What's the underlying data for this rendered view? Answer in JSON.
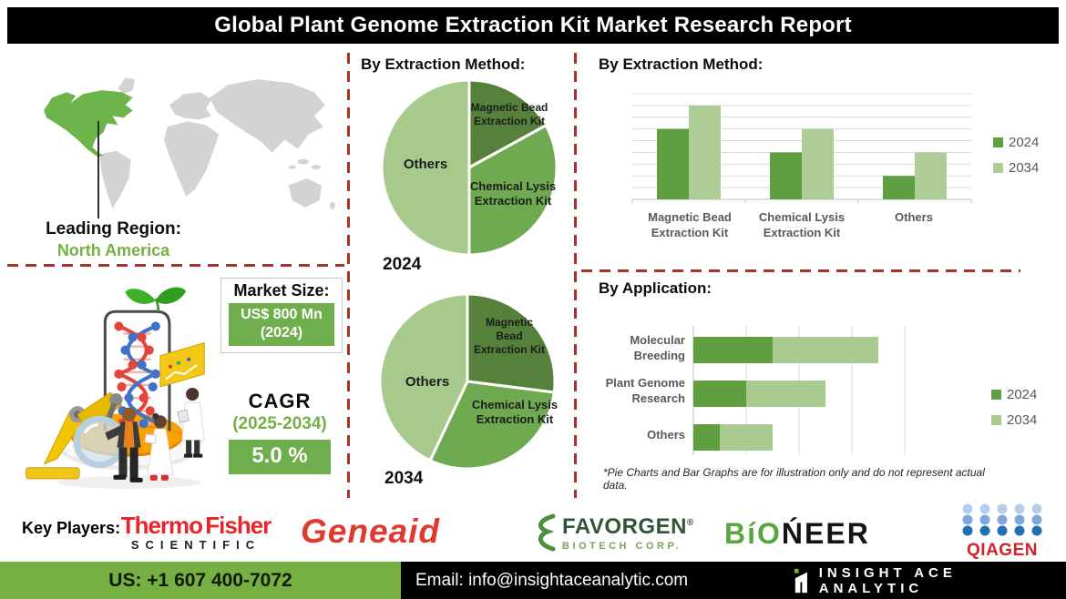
{
  "title": "Global Plant Genome Extraction Kit Market Research Report",
  "leading_region": {
    "label": "Leading Region:",
    "value": "North America"
  },
  "market_size": {
    "label": "Market Size:",
    "value": "US$ 800 Mn",
    "year": "(2024)"
  },
  "cagr": {
    "label": "CAGR",
    "period": "(2025-2034)",
    "value": "5.0 %"
  },
  "sections": {
    "pies": {
      "title": "By Extraction Method:"
    },
    "bars": {
      "title": "By Extraction Method:"
    },
    "app": {
      "title": "By Application:",
      "footnote": "*Pie Charts and Bar Graphs are for illustration only and do not represent actual data."
    }
  },
  "colors": {
    "accent_green": "#76b043",
    "box_green": "#6fae4c",
    "dash_red": "#a93226",
    "map_green": "#6db44a",
    "map_gray": "#d3d3d3"
  },
  "chart_data": [
    {
      "type": "pie",
      "title": "By Extraction Method:",
      "year": "2024",
      "labels": [
        "Magnetic Bead Extraction Kit",
        "Chemical Lysis Extraction Kit",
        "Others"
      ],
      "values": [
        17,
        33,
        50
      ],
      "colors": [
        "#55813a",
        "#6fa950",
        "#a7c98c"
      ]
    },
    {
      "type": "pie",
      "title": "By Extraction Method:",
      "year": "2034",
      "labels": [
        "Magnetic Bead Extraction Kit",
        "Chemical Lysis Extraction Kit",
        "Others"
      ],
      "values": [
        27,
        30,
        43
      ],
      "colors": [
        "#55813a",
        "#6fa950",
        "#a7c98c"
      ]
    },
    {
      "type": "bar",
      "title": "By Extraction Method:",
      "categories": [
        "Magnetic Bead Extraction Kit",
        "Chemical Lysis Extraction Kit",
        "Others"
      ],
      "series": [
        {
          "name": "2024",
          "values": [
            6,
            4,
            2
          ]
        },
        {
          "name": "2034",
          "values": [
            8,
            6,
            4
          ]
        }
      ],
      "ylim": [
        0,
        9
      ],
      "grid": true,
      "legend_position": "right",
      "colors": [
        "#5f9e41",
        "#adcc96"
      ],
      "note": "relative illustrative units, axis unlabeled"
    },
    {
      "type": "stacked-bar-horizontal",
      "title": "By Application:",
      "categories": [
        "Molecular Breeding",
        "Plant Genome Research",
        "Others"
      ],
      "series": [
        {
          "name": "2024",
          "values": [
            1.5,
            1.0,
            0.5
          ]
        },
        {
          "name": "2034",
          "values": [
            2.0,
            1.5,
            1.0
          ]
        }
      ],
      "xlim": [
        0,
        4
      ],
      "grid": true,
      "legend_position": "right",
      "colors": [
        "#5f9e41",
        "#a9cb90"
      ],
      "note": "relative illustrative units, axis unlabeled"
    }
  ],
  "key_players": {
    "label": "Key Players:",
    "thermo_line1": "Thermo Fisher",
    "thermo_line2": "SCIENTIFIC",
    "geneaid": "Geneaid",
    "favorgen_name": "FAVORGEN",
    "favorgen_reg": "®",
    "favorgen_sub": "BIOTECH CORP.",
    "bioneer_green": "BíO",
    "bioneer_black": "ŃEER",
    "qiagen": "QIAGEN"
  },
  "footer": {
    "phone": "US: +1 607 400-7072",
    "email": "Email: info@insightaceanalytic.com",
    "brand": "INSIGHT ACE ANALYTIC"
  }
}
